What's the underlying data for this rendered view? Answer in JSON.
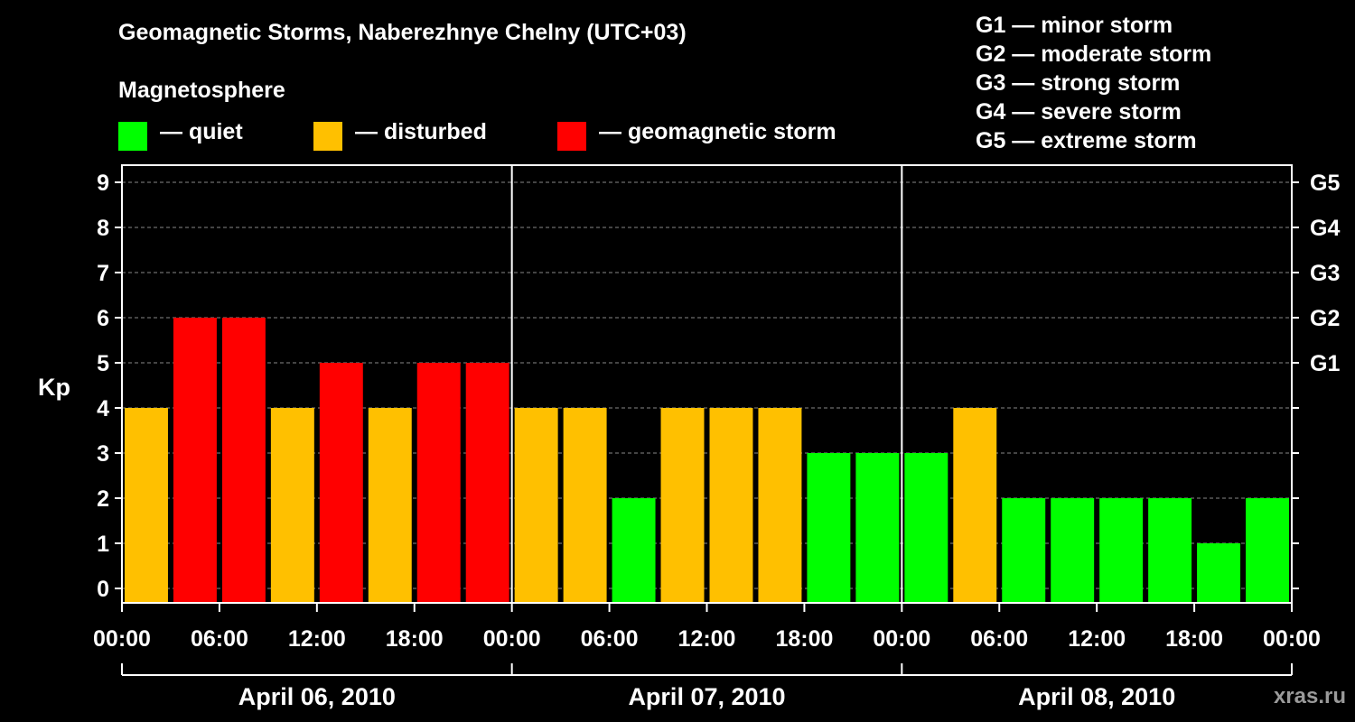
{
  "chart_data": {
    "type": "bar",
    "title": "Geomagnetic Storms, Naberezhnye Chelny (UTC+03)",
    "legend": {
      "title": "Magnetosphere",
      "items": [
        {
          "label": "— quiet",
          "color": "#00ff00"
        },
        {
          "label": "— disturbed",
          "color": "#ffc000"
        },
        {
          "label": "— geomagnetic storm",
          "color": "#ff0000"
        }
      ]
    },
    "storm_scale": [
      "G1 — minor storm",
      "G2 — moderate storm",
      "G3 — strong storm",
      "G4 — severe storm",
      "G5 — extreme storm"
    ],
    "ylabel": "Kp",
    "ylim": [
      0,
      9
    ],
    "yticks": [
      "0",
      "1",
      "2",
      "3",
      "4",
      "5",
      "6",
      "7",
      "8",
      "9"
    ],
    "right_ticks": [
      {
        "kp": 5,
        "label": "G1"
      },
      {
        "kp": 6,
        "label": "G2"
      },
      {
        "kp": 7,
        "label": "G3"
      },
      {
        "kp": 8,
        "label": "G4"
      },
      {
        "kp": 9,
        "label": "G5"
      }
    ],
    "xticks": [
      "00:00",
      "06:00",
      "12:00",
      "18:00",
      "00:00",
      "06:00",
      "12:00",
      "18:00",
      "00:00",
      "06:00",
      "12:00",
      "18:00",
      "00:00"
    ],
    "days": [
      "April 06, 2010",
      "April 07, 2010",
      "April 08, 2010"
    ],
    "values": [
      4,
      6,
      6,
      4,
      5,
      4,
      5,
      5,
      4,
      4,
      2,
      4,
      4,
      4,
      3,
      3,
      3,
      4,
      2,
      2,
      2,
      2,
      1,
      2
    ],
    "colors": {
      "quiet": "#00ff00",
      "disturbed": "#ffc000",
      "storm": "#ff0000"
    },
    "grid": true
  },
  "watermark": "xras.ru"
}
